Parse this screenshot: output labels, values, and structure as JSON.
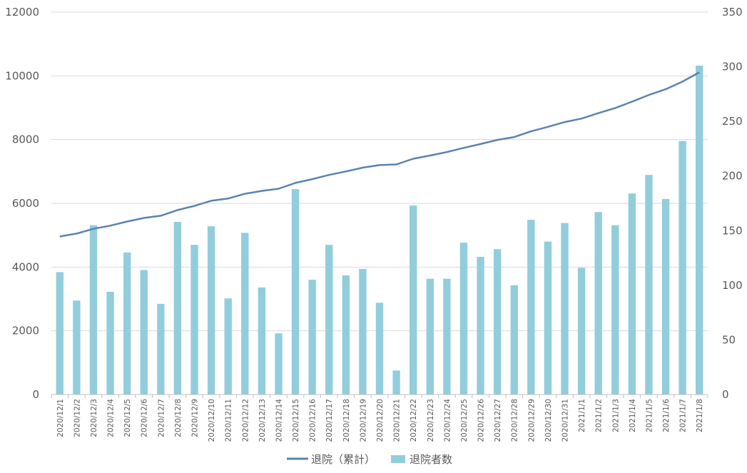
{
  "chart_data": {
    "type": "bar",
    "title": "",
    "xlabel": "",
    "ylabel": "",
    "y2label": "",
    "categories": [
      "2020/12/1",
      "2020/12/2",
      "2020/12/3",
      "2020/12/4",
      "2020/12/5",
      "2020/12/6",
      "2020/12/7",
      "2020/12/8",
      "2020/12/9",
      "2020/12/10",
      "2020/12/11",
      "2020/12/12",
      "2020/12/13",
      "2020/12/14",
      "2020/12/15",
      "2020/12/16",
      "2020/12/17",
      "2020/12/18",
      "2020/12/19",
      "2020/12/20",
      "2020/12/21",
      "2020/12/22",
      "2020/12/23",
      "2020/12/24",
      "2020/12/25",
      "2020/12/26",
      "2020/12/27",
      "2020/12/28",
      "2020/12/29",
      "2020/12/30",
      "2020/12/31",
      "2021/1/1",
      "2021/1/2",
      "2021/1/3",
      "2021/1/4",
      "2021/1/5",
      "2021/1/6",
      "2021/1/7",
      "2021/1/8"
    ],
    "ylim": [
      0,
      12000
    ],
    "y2lim": [
      0,
      350
    ],
    "yticks": [
      0,
      2000,
      4000,
      6000,
      8000,
      10000,
      12000
    ],
    "y2ticks": [
      0,
      50,
      100,
      150,
      200,
      250,
      300,
      350
    ],
    "grid": true,
    "legend_position": "bottom",
    "series": [
      {
        "name": "退院（累計）",
        "kind": "line",
        "axis": "left",
        "color": "#5b83ae",
        "values": [
          4960,
          5050,
          5200,
          5300,
          5430,
          5540,
          5610,
          5790,
          5920,
          6080,
          6150,
          6300,
          6390,
          6460,
          6640,
          6760,
          6890,
          7000,
          7120,
          7200,
          7220,
          7400,
          7500,
          7610,
          7740,
          7860,
          7990,
          8080,
          8260,
          8400,
          8550,
          8660,
          8830,
          8990,
          9190,
          9400,
          9580,
          9820,
          10110
        ]
      },
      {
        "name": "退院者数",
        "kind": "bar",
        "axis": "right",
        "color": "#92cddc",
        "values": [
          112,
          86,
          155,
          94,
          130,
          114,
          83,
          158,
          137,
          154,
          88,
          148,
          98,
          56,
          188,
          105,
          137,
          109,
          115,
          84,
          22,
          173,
          106,
          106,
          139,
          126,
          133,
          100,
          160,
          140,
          157,
          116,
          167,
          155,
          184,
          201,
          179,
          232,
          301
        ]
      }
    ]
  }
}
